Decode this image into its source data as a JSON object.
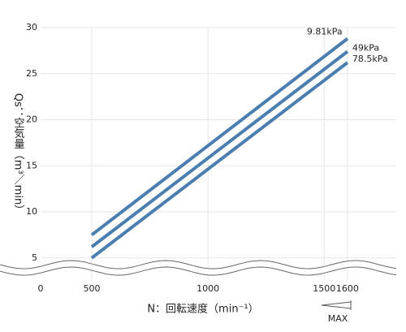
{
  "chart_data": {
    "type": "line",
    "x_label": "N：回転速度（min⁻¹）",
    "y_label": "Qs：空気量（m³／min）",
    "annotation": "MAX",
    "x": [
      500,
      1600
    ],
    "series": [
      {
        "name": "9.81kPa",
        "color": "#4a7db0",
        "values": [
          7.5,
          28.8
        ]
      },
      {
        "name": "49kPa",
        "color": "#4a7db0",
        "values": [
          6.2,
          27.4
        ]
      },
      {
        "name": "78.5kPa",
        "color": "#4a7db0",
        "values": [
          5.0,
          26.2
        ]
      }
    ],
    "xlim": [
      280,
      1810
    ],
    "ylim": [
      2.6,
      30
    ],
    "xticks": [
      0,
      500,
      1000,
      1500,
      1600
    ],
    "yticks": [
      5,
      10,
      15,
      20,
      25,
      30
    ],
    "grid": true,
    "axis_break": true
  }
}
